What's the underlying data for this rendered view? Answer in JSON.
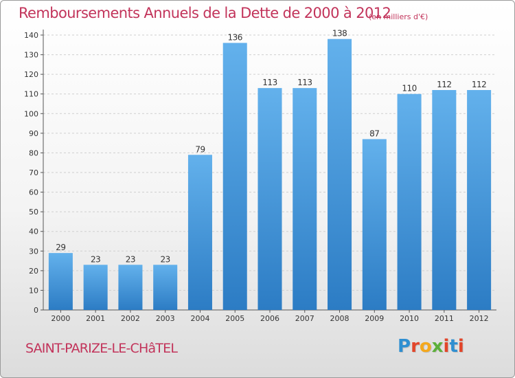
{
  "header": {
    "title": "Remboursements Annuels de la Dette de 2000 à 2012",
    "subtitle": "(en milliers d'€)"
  },
  "footer": {
    "commune": "SAINT-PARIZE-LE-CHâTEL",
    "logo_letters": [
      "P",
      "r",
      "o",
      "x",
      "i",
      "t",
      "i"
    ],
    "logo_colors": [
      "#2f8fd1",
      "#e2452a",
      "#f4a81d",
      "#5cb03a",
      "#e2452a",
      "#2f8fd1",
      "#e2452a"
    ]
  },
  "chart_data": {
    "type": "bar",
    "categories": [
      "2000",
      "2001",
      "2002",
      "2003",
      "2004",
      "2005",
      "2006",
      "2007",
      "2008",
      "2009",
      "2010",
      "2011",
      "2012"
    ],
    "values": [
      29,
      23,
      23,
      23,
      79,
      136,
      113,
      113,
      138,
      87,
      110,
      112,
      112
    ],
    "ylim": [
      0,
      140
    ],
    "yticks": [
      0,
      10,
      20,
      30,
      40,
      50,
      60,
      70,
      80,
      90,
      100,
      110,
      120,
      130,
      140
    ],
    "grid": true,
    "bar_color": "#3d8fd6"
  }
}
